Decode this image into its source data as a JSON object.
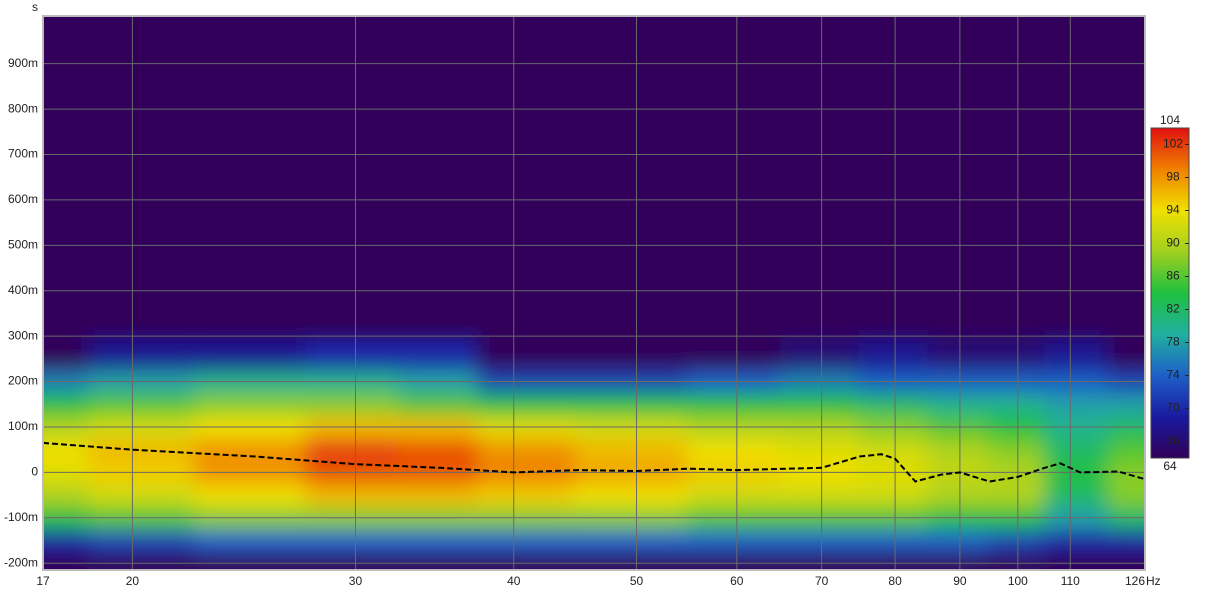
{
  "chart_data": {
    "type": "heatmap",
    "ylabel": "s",
    "xlabel": "Hz",
    "xscale": "log",
    "xlim": [
      17,
      126
    ],
    "xticks": [
      17,
      20,
      30,
      40,
      50,
      60,
      70,
      80,
      90,
      100,
      110,
      126
    ],
    "ylim": [
      -0.215,
      1.005
    ],
    "yticks": [
      {
        "value": -0.2,
        "label": "-200m"
      },
      {
        "value": -0.1,
        "label": "-100m"
      },
      0,
      {
        "value": 0.1,
        "label": "100m"
      },
      {
        "value": 0.2,
        "label": "200m"
      },
      {
        "value": 0.3,
        "label": "300m"
      },
      {
        "value": 0.4,
        "label": "400m"
      },
      {
        "value": 0.5,
        "label": "500m"
      },
      {
        "value": 0.6,
        "label": "600m"
      },
      {
        "value": 0.7,
        "label": "700m"
      },
      {
        "value": 0.8,
        "label": "800m"
      },
      {
        "value": 0.9,
        "label": "900m"
      }
    ],
    "grid": true,
    "background": "#32005a",
    "x": [
      17,
      20,
      25,
      30,
      35,
      40,
      50,
      60,
      70,
      80,
      90,
      100,
      110,
      126
    ],
    "y": [
      -0.2,
      -0.15,
      -0.1,
      -0.05,
      0,
      0.05,
      0.1,
      0.15,
      0.2,
      0.25
    ],
    "z": [
      [
        64,
        70,
        84,
        90,
        93,
        94,
        90,
        84,
        76,
        64
      ],
      [
        64,
        72,
        86,
        92,
        95,
        96,
        92,
        86,
        78,
        68
      ],
      [
        64,
        74,
        88,
        94,
        98,
        98,
        94,
        88,
        80,
        68
      ],
      [
        64,
        74,
        88,
        96,
        101,
        102,
        96,
        88,
        80,
        70
      ],
      [
        64,
        74,
        88,
        96,
        101,
        101,
        96,
        86,
        78,
        70
      ],
      [
        64,
        74,
        88,
        95,
        99,
        98,
        93,
        84,
        72,
        64
      ],
      [
        64,
        74,
        88,
        94,
        97,
        96,
        92,
        84,
        72,
        64
      ],
      [
        64,
        74,
        86,
        92,
        95,
        94,
        90,
        84,
        74,
        64
      ],
      [
        64,
        74,
        86,
        92,
        94,
        93,
        90,
        84,
        76,
        66
      ],
      [
        64,
        74,
        86,
        92,
        93,
        92,
        88,
        82,
        74,
        68
      ],
      [
        64,
        74,
        84,
        90,
        91,
        90,
        86,
        80,
        74,
        66
      ],
      [
        64,
        72,
        84,
        90,
        90,
        88,
        84,
        80,
        74,
        66
      ],
      [
        64,
        70,
        78,
        82,
        84,
        82,
        80,
        78,
        74,
        68
      ],
      [
        64,
        70,
        82,
        88,
        88,
        86,
        82,
        78,
        72,
        64
      ]
    ],
    "zlim": [
      64,
      104
    ],
    "zticks": [
      64,
      66,
      70,
      74,
      78,
      82,
      86,
      90,
      94,
      98,
      102,
      104
    ],
    "colorscale": [
      "#30005a",
      "#1a1aa0",
      "#1e60c8",
      "#20b0a0",
      "#20c040",
      "#a0d020",
      "#f0e000",
      "#f08000",
      "#e01010"
    ],
    "series": [
      {
        "color": "#000000",
        "x": [
          17,
          20,
          25,
          30,
          35,
          40,
          45,
          50,
          55,
          60,
          70,
          75,
          78,
          80,
          83,
          87,
          90,
          95,
          100,
          105,
          108,
          112,
          120,
          126
        ],
        "values": [
          0.065,
          0.05,
          0.035,
          0.018,
          0.01,
          0.0,
          0.005,
          0.003,
          0.008,
          0.005,
          0.01,
          0.035,
          0.04,
          0.03,
          -0.02,
          -0.005,
          0.0,
          -0.02,
          -0.01,
          0.01,
          0.02,
          0.0,
          0.002,
          -0.015
        ]
      }
    ]
  }
}
